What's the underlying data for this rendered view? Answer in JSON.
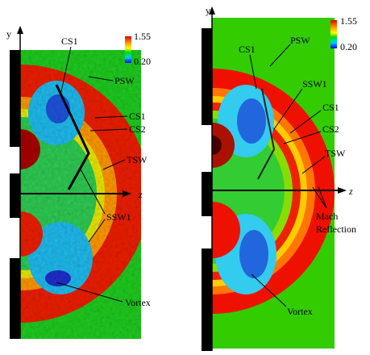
{
  "left": {
    "axis_y": "y",
    "axis_z": "z",
    "colorbar": {
      "max": "1.55",
      "min": "0.20"
    },
    "labels": [
      "CS1",
      "PSW",
      "CS1",
      "CS2",
      "TSW",
      "SSW1",
      "Vortex"
    ]
  },
  "right": {
    "axis_y": "y",
    "axis_z": "z",
    "colorbar": {
      "max": "1.55",
      "min": "0.20"
    },
    "labels": [
      "CS1",
      "PSW",
      "SSW1",
      "CS1",
      "CS2",
      "TSW",
      "Mach",
      "Reflection",
      "Vortex"
    ]
  }
}
